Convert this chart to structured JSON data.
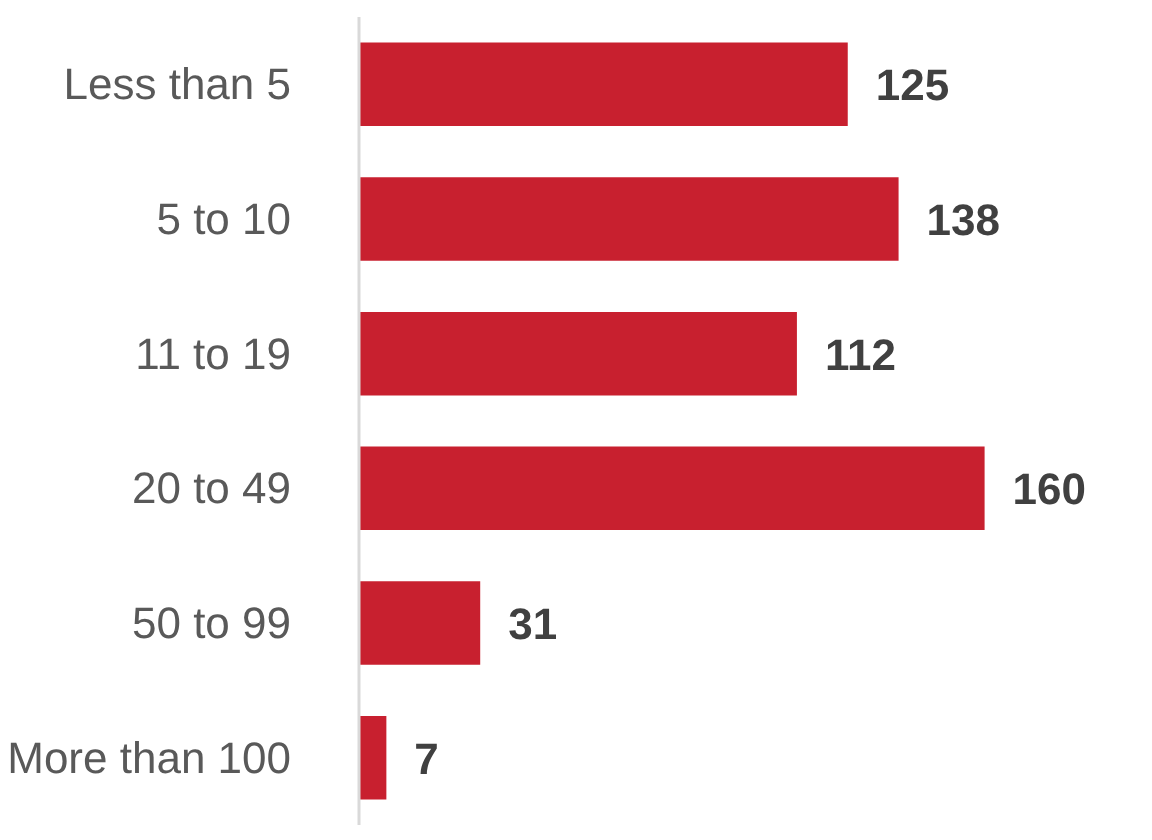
{
  "chart_data": {
    "type": "bar",
    "orientation": "horizontal",
    "categories": [
      "Less than 5",
      "5 to 10",
      "11 to 19",
      "20 to 49",
      "50 to 99",
      "More than 100"
    ],
    "values": [
      125,
      138,
      112,
      160,
      31,
      7
    ],
    "color": "#c8202f",
    "data_labels": true
  }
}
